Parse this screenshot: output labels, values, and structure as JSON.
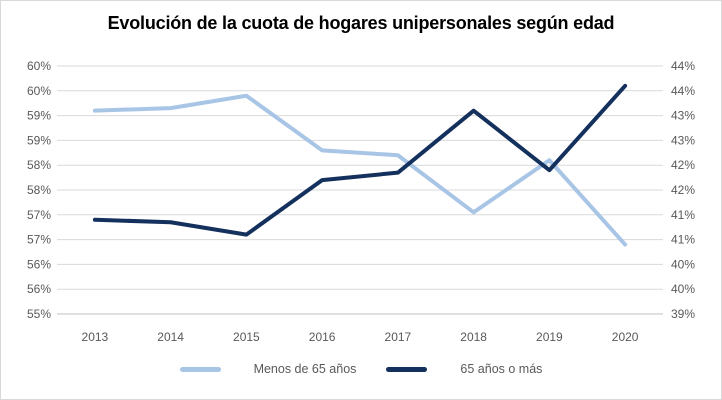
{
  "chart": {
    "title": "Evolución de la cuota de hogares unipersonales según edad"
  },
  "colors": {
    "series_light_blue": "#A8C5E6",
    "series_dark_navy": "#14305C",
    "gridline": "#D9D9D9",
    "axis_line": "#C0C0C0",
    "tick_text": "#595959",
    "title_text": "#000000",
    "frame_border": "#D9D9D9"
  },
  "chart_data": {
    "type": "line",
    "title": "Evolución de la cuota de hogares unipersonales según edad",
    "x": [
      "2013",
      "2014",
      "2015",
      "2016",
      "2017",
      "2018",
      "2019",
      "2020"
    ],
    "grid": true,
    "legend_position": "bottom",
    "left_axis": {
      "min": 55,
      "max": 60,
      "step": 0.5,
      "unit": "%",
      "tick_labels_top_to_bottom": [
        "60%",
        "60%",
        "59%",
        "59%",
        "58%",
        "58%",
        "57%",
        "57%",
        "56%",
        "56%",
        "55%"
      ]
    },
    "right_axis": {
      "min": 39,
      "max": 44,
      "step": 0.5,
      "unit": "%",
      "tick_labels_top_to_bottom": [
        "44%",
        "44%",
        "43%",
        "43%",
        "42%",
        "42%",
        "41%",
        "41%",
        "40%",
        "40%",
        "39%"
      ]
    },
    "series": [
      {
        "name": "Menos de 65 años",
        "axis": "left",
        "color": "#A8C5E6",
        "values": [
          59.1,
          59.15,
          59.4,
          58.3,
          58.2,
          57.05,
          58.1,
          56.4
        ]
      },
      {
        "name": "65 años o más",
        "axis": "right",
        "color": "#14305C",
        "values": [
          40.9,
          40.85,
          40.6,
          41.7,
          41.85,
          43.1,
          41.9,
          43.6
        ]
      }
    ]
  }
}
